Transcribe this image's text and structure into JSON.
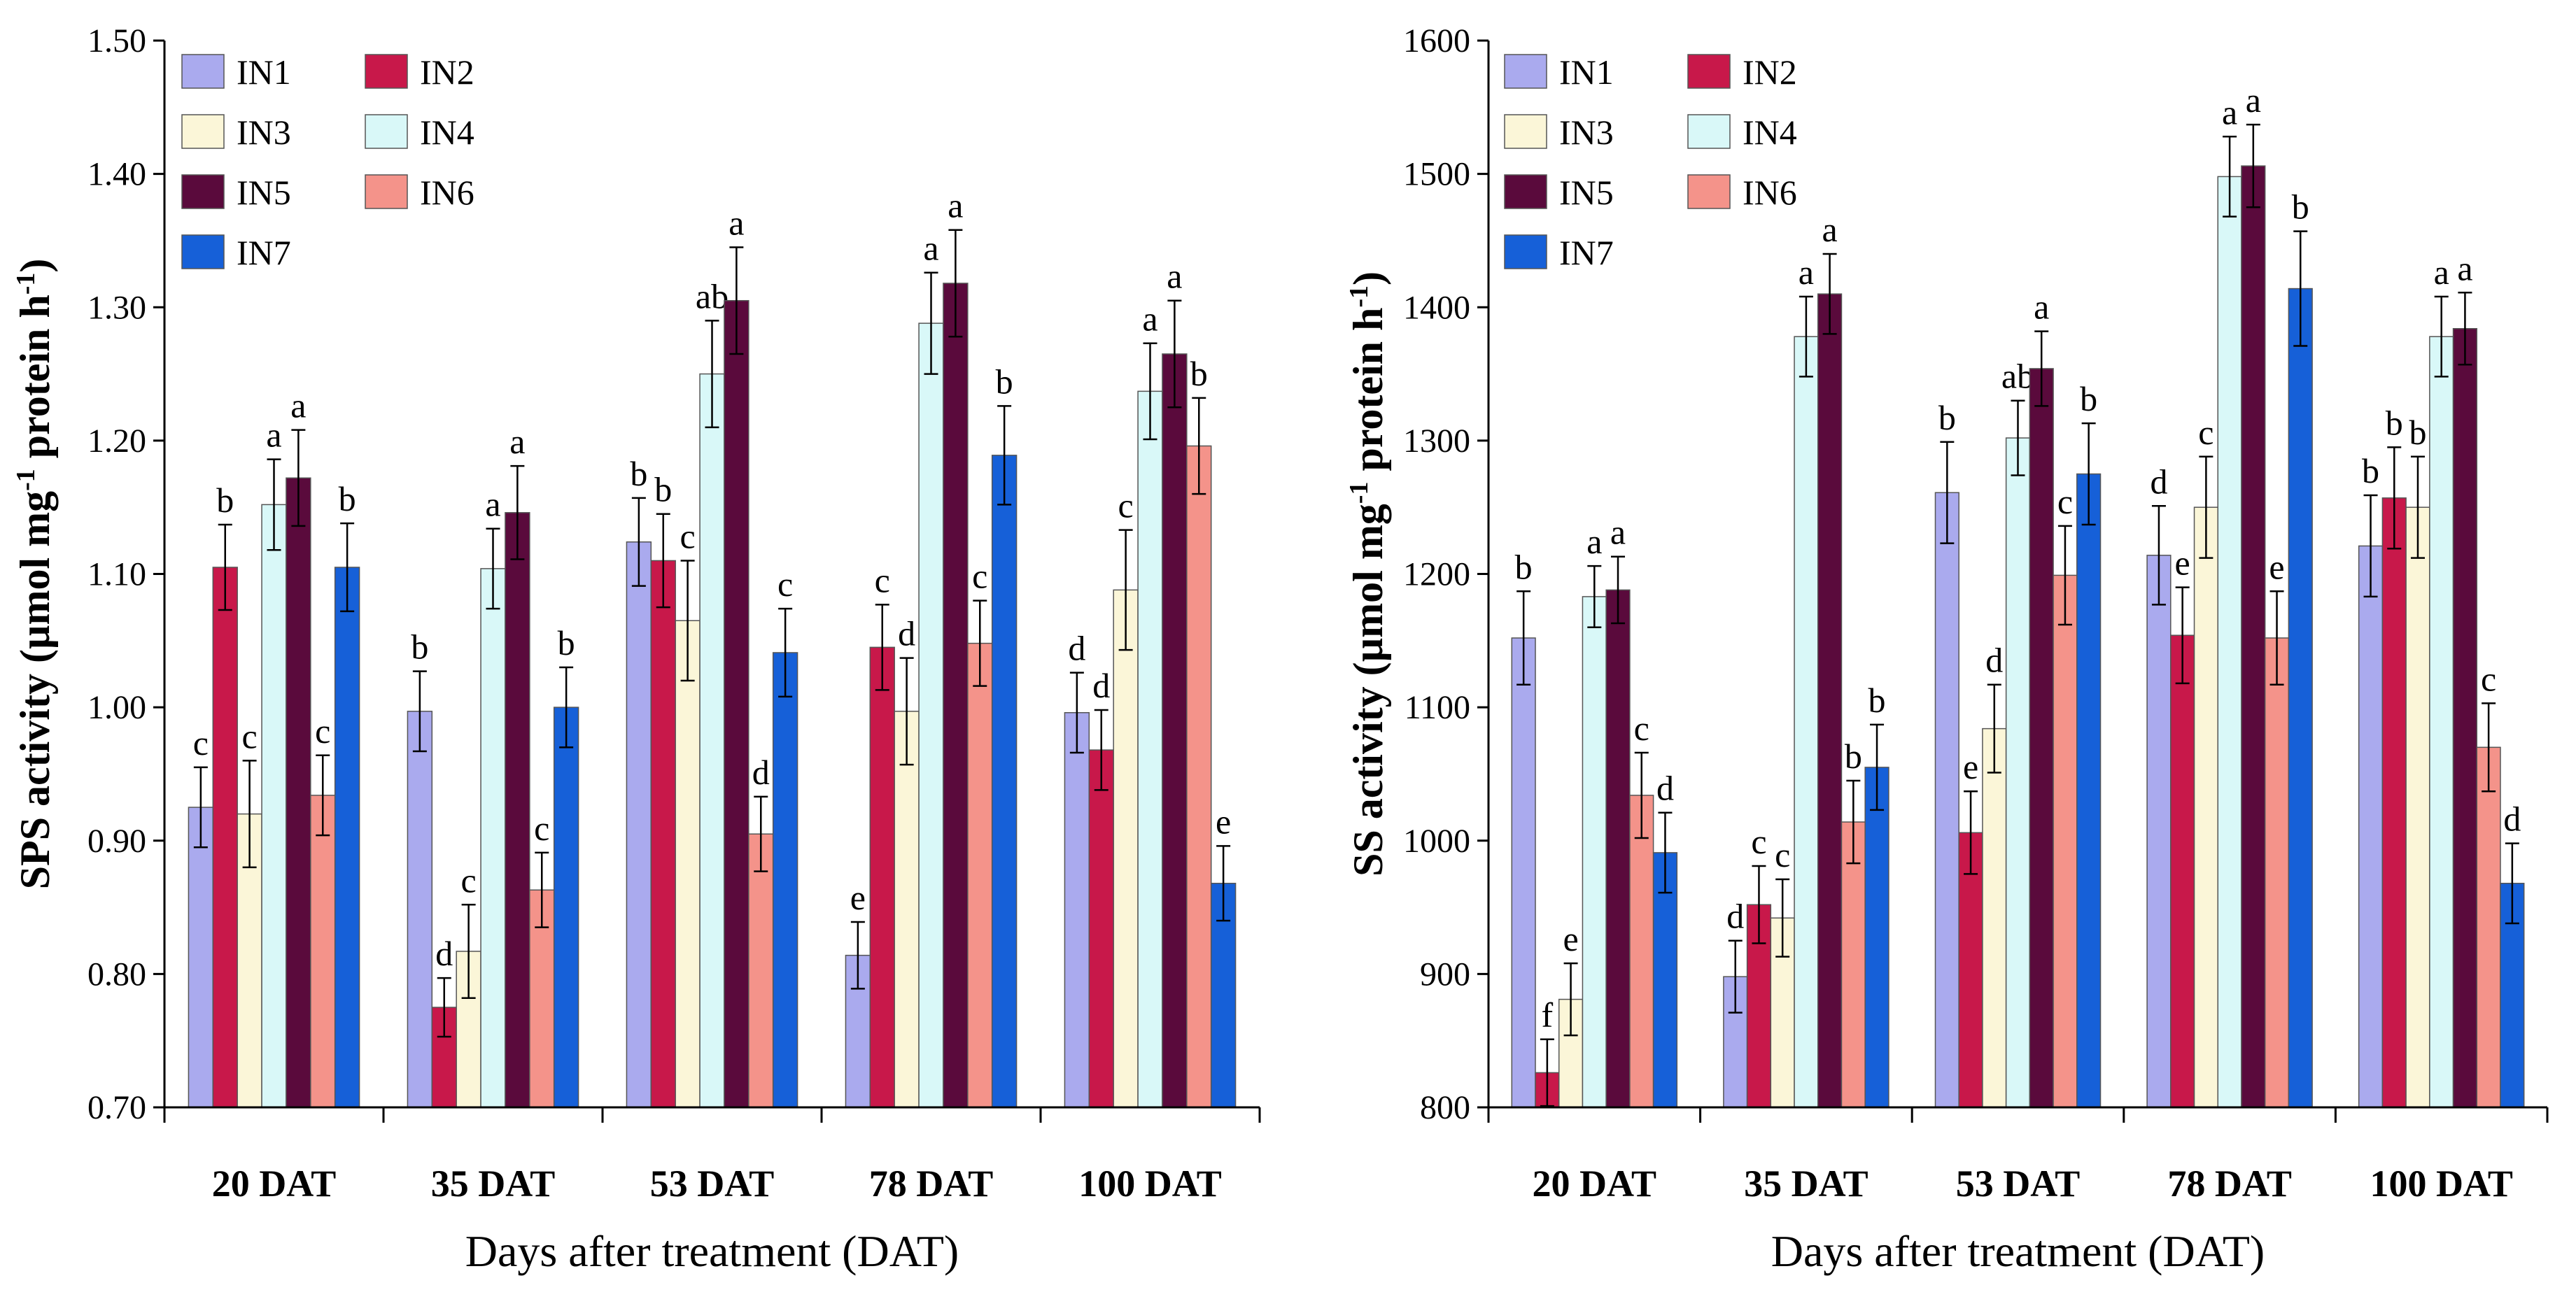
{
  "colors": {
    "IN1": "#aaaaee",
    "IN2": "#c8184a",
    "IN3": "#fbf6d8",
    "IN4": "#d9f8f8",
    "IN5": "#5a0a3c",
    "IN6": "#f4938a",
    "IN7": "#1660d8"
  },
  "chart_data": [
    {
      "type": "bar",
      "title": "",
      "xlabel": "Days after treatment (DAT)",
      "ylabel_main": "SPS activity (µmol mg",
      "ylabel_sup1": "-1",
      "ylabel_mid": " protein h",
      "ylabel_sup2": "-1",
      "ylabel_end": ")",
      "ylim": [
        0.7,
        1.5
      ],
      "yticks": [
        "0.70",
        "0.80",
        "0.90",
        "1.00",
        "1.10",
        "1.20",
        "1.30",
        "1.40",
        "1.50"
      ],
      "categories": [
        "20 DAT",
        "35 DAT",
        "53 DAT",
        "78 DAT",
        "100 DAT"
      ],
      "legend_position": "top-left",
      "series": [
        {
          "name": "IN1",
          "values": [
            0.925,
            0.997,
            1.124,
            0.814,
            0.996
          ],
          "errors": [
            0.03,
            0.03,
            0.033,
            0.025,
            0.03
          ],
          "letters": [
            "c",
            "b",
            "b",
            "e",
            "d"
          ]
        },
        {
          "name": "IN2",
          "values": [
            1.105,
            0.775,
            1.11,
            1.045,
            0.968
          ],
          "errors": [
            0.032,
            0.022,
            0.035,
            0.032,
            0.03
          ],
          "letters": [
            "b",
            "d",
            "b",
            "c",
            "d"
          ]
        },
        {
          "name": "IN3",
          "values": [
            0.92,
            0.817,
            1.065,
            0.997,
            1.088
          ],
          "errors": [
            0.04,
            0.035,
            0.045,
            0.04,
            0.045
          ],
          "letters": [
            "c",
            "c",
            "c",
            "d",
            "c"
          ]
        },
        {
          "name": "IN4",
          "values": [
            1.152,
            1.104,
            1.25,
            1.288,
            1.237
          ],
          "errors": [
            0.034,
            0.03,
            0.04,
            0.038,
            0.036
          ],
          "letters": [
            "a",
            "a",
            "ab",
            "a",
            "a"
          ]
        },
        {
          "name": "IN5",
          "values": [
            1.172,
            1.146,
            1.305,
            1.318,
            1.265
          ],
          "errors": [
            0.036,
            0.035,
            0.04,
            0.04,
            0.04
          ],
          "letters": [
            "a",
            "a",
            "a",
            "a",
            "a"
          ]
        },
        {
          "name": "IN6",
          "values": [
            0.934,
            0.863,
            0.905,
            1.048,
            1.196
          ],
          "errors": [
            0.03,
            0.028,
            0.028,
            0.032,
            0.036
          ],
          "letters": [
            "c",
            "c",
            "d",
            "c",
            "b"
          ]
        },
        {
          "name": "IN7",
          "values": [
            1.105,
            1.0,
            1.041,
            1.189,
            0.868
          ],
          "errors": [
            0.033,
            0.03,
            0.033,
            0.037,
            0.028
          ],
          "letters": [
            "b",
            "b",
            "c",
            "b",
            "e"
          ]
        }
      ]
    },
    {
      "type": "bar",
      "title": "",
      "xlabel": "Days after treatment (DAT)",
      "ylabel_main": "SS activity (µmol mg",
      "ylabel_sup1": "-1",
      "ylabel_mid": " protein h",
      "ylabel_sup2": "-1",
      "ylabel_end": ")",
      "ylim": [
        800,
        1600
      ],
      "yticks": [
        "800",
        "900",
        "1000",
        "1100",
        "1200",
        "1300",
        "1400",
        "1500",
        "1600"
      ],
      "categories": [
        "20 DAT",
        "35 DAT",
        "53 DAT",
        "78 DAT",
        "100 DAT"
      ],
      "legend_position": "top-left",
      "series": [
        {
          "name": "IN1",
          "values": [
            1152,
            898,
            1261,
            1214,
            1221
          ],
          "errors": [
            35,
            27,
            38,
            37,
            38
          ],
          "letters": [
            "b",
            "d",
            "b",
            "d",
            "b"
          ]
        },
        {
          "name": "IN2",
          "values": [
            826,
            952,
            1006,
            1154,
            1257
          ],
          "errors": [
            25,
            29,
            31,
            36,
            38
          ],
          "letters": [
            "f",
            "c",
            "e",
            "e",
            "b"
          ]
        },
        {
          "name": "IN3",
          "values": [
            881,
            942,
            1084,
            1250,
            1250
          ],
          "errors": [
            27,
            29,
            33,
            38,
            38
          ],
          "letters": [
            "e",
            "c",
            "d",
            "c",
            "b"
          ]
        },
        {
          "name": "IN4",
          "values": [
            1183,
            1378,
            1302,
            1498,
            1378
          ],
          "errors": [
            23,
            30,
            28,
            30,
            30
          ],
          "letters": [
            "a",
            "a",
            "ab",
            "a",
            "a"
          ]
        },
        {
          "name": "IN5",
          "values": [
            1188,
            1410,
            1354,
            1506,
            1384
          ],
          "errors": [
            25,
            30,
            28,
            31,
            27
          ],
          "letters": [
            "a",
            "a",
            "a",
            "a",
            "a"
          ]
        },
        {
          "name": "IN6",
          "values": [
            1034,
            1014,
            1199,
            1152,
            1070
          ],
          "errors": [
            32,
            31,
            37,
            35,
            33
          ],
          "letters": [
            "c",
            "b",
            "c",
            "e",
            "c"
          ]
        },
        {
          "name": "IN7",
          "values": [
            991,
            1055,
            1275,
            1414,
            968
          ],
          "errors": [
            30,
            32,
            38,
            43,
            30
          ],
          "letters": [
            "d",
            "b",
            "b",
            "b",
            "d"
          ]
        }
      ]
    }
  ]
}
